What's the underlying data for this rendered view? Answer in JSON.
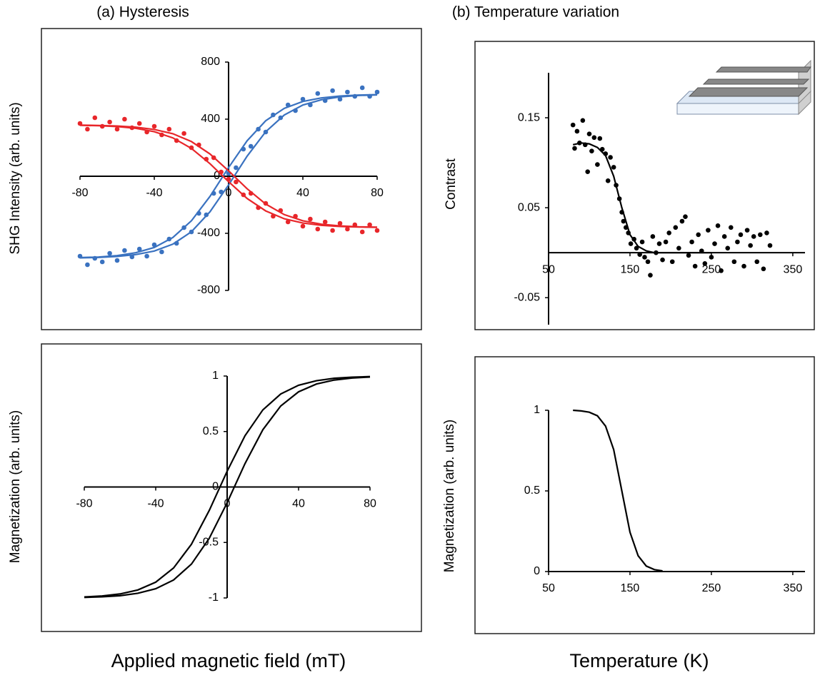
{
  "chart_data": [
    {
      "type": "scatter",
      "title": "(a) Hysteresis",
      "ylabel": "SHG Intensity (arb. units)",
      "xlim": [
        -80,
        80
      ],
      "ylim": [
        -800,
        800
      ],
      "xticks": [
        -80,
        -40,
        0,
        40,
        80
      ],
      "yticks": [
        -800,
        -400,
        0,
        400,
        800
      ],
      "series": [
        {
          "style": "markers",
          "color": "#3a72c0",
          "x": [
            -80,
            -76,
            -72,
            -68,
            -64,
            -60,
            -56,
            -52,
            -48,
            -44,
            -40,
            -36,
            -32,
            -28,
            -24,
            -20,
            -16,
            -12,
            -8,
            -4,
            0,
            4,
            8,
            12,
            16,
            20,
            24,
            28,
            32,
            36,
            40,
            44,
            48,
            52,
            56,
            60,
            64,
            68,
            72,
            76,
            80
          ],
          "values": [
            -560,
            -620,
            -575,
            -600,
            -540,
            -590,
            -520,
            -565,
            -510,
            -560,
            -480,
            -530,
            -440,
            -470,
            -360,
            -390,
            -260,
            -270,
            -120,
            -110,
            20,
            60,
            190,
            210,
            330,
            310,
            430,
            410,
            500,
            460,
            540,
            500,
            580,
            530,
            600,
            540,
            590,
            560,
            620,
            560,
            590
          ]
        },
        {
          "style": "markers",
          "color": "#e8262a",
          "x": [
            -80,
            -76,
            -72,
            -68,
            -64,
            -60,
            -56,
            -52,
            -48,
            -44,
            -40,
            -36,
            -32,
            -28,
            -24,
            -20,
            -16,
            -12,
            -8,
            -4,
            0,
            4,
            8,
            12,
            16,
            20,
            24,
            28,
            32,
            36,
            40,
            44,
            48,
            52,
            56,
            60,
            64,
            68,
            72,
            76,
            80
          ],
          "values": [
            370,
            330,
            410,
            350,
            380,
            330,
            400,
            340,
            370,
            310,
            350,
            290,
            330,
            250,
            300,
            200,
            220,
            120,
            130,
            30,
            -20,
            -40,
            -130,
            -120,
            -220,
            -190,
            -280,
            -240,
            -320,
            -280,
            -350,
            -300,
            -370,
            -320,
            -380,
            -330,
            -370,
            -340,
            -390,
            -340,
            -380
          ]
        },
        {
          "style": "line",
          "color": "#3a72c0",
          "x": [
            -80,
            -70,
            -60,
            -50,
            -40,
            -30,
            -20,
            -10,
            0,
            10,
            20,
            30,
            40,
            50,
            60,
            70,
            80
          ],
          "values": [
            -572,
            -569,
            -562,
            -549,
            -524,
            -476,
            -389,
            -249,
            -61,
            141,
            312,
            429,
            499,
            536,
            556,
            566,
            570
          ]
        },
        {
          "style": "line",
          "color": "#3a72c0",
          "x": [
            -80,
            -70,
            -60,
            -50,
            -40,
            -30,
            -20,
            -10,
            0,
            10,
            20,
            30,
            40,
            50,
            60,
            70,
            80
          ],
          "values": [
            -570,
            -566,
            -556,
            -536,
            -499,
            -429,
            -312,
            -141,
            61,
            249,
            389,
            476,
            524,
            549,
            562,
            569,
            572
          ]
        },
        {
          "style": "line",
          "color": "#e8262a",
          "x": [
            -80,
            -70,
            -60,
            -50,
            -40,
            -30,
            -20,
            -10,
            0,
            10,
            20,
            30,
            40,
            50,
            60,
            70,
            80
          ],
          "values": [
            358,
            356,
            352,
            344,
            328,
            298,
            243,
            156,
            38,
            -88,
            -195,
            -269,
            -312,
            -336,
            -348,
            -354,
            -357
          ]
        },
        {
          "style": "line",
          "color": "#e8262a",
          "x": [
            -80,
            -70,
            -60,
            -50,
            -40,
            -30,
            -20,
            -10,
            0,
            10,
            20,
            30,
            40,
            50,
            60,
            70,
            80
          ],
          "values": [
            357,
            354,
            348,
            336,
            312,
            269,
            195,
            88,
            -38,
            -156,
            -243,
            -298,
            -328,
            -344,
            -352,
            -356,
            -358
          ]
        }
      ]
    },
    {
      "type": "scatter",
      "title": "(b) Temperature variation",
      "ylabel": "Contrast",
      "xlim": [
        50,
        365
      ],
      "ylim": [
        -0.08,
        0.2
      ],
      "xticks": [
        50,
        150,
        250,
        350
      ],
      "yticks": [
        -0.05,
        0.05,
        0.15
      ],
      "series": [
        {
          "style": "markers",
          "color": "#000000",
          "x": [
            80,
            82,
            85,
            88,
            92,
            95,
            98,
            100,
            103,
            106,
            110,
            113,
            116,
            120,
            123,
            126,
            130,
            133,
            137,
            140,
            142,
            145,
            148,
            151,
            155,
            158,
            162,
            165,
            168,
            172,
            175,
            178,
            182,
            186,
            190,
            194,
            198,
            202,
            206,
            210,
            214,
            218,
            222,
            226,
            230,
            234,
            238,
            242,
            246,
            250,
            254,
            258,
            262,
            266,
            270,
            274,
            278,
            282,
            286,
            290,
            294,
            298,
            302,
            306,
            310,
            314,
            318,
            322
          ],
          "values": [
            0.142,
            0.116,
            0.135,
            0.122,
            0.147,
            0.12,
            0.09,
            0.132,
            0.113,
            0.128,
            0.098,
            0.127,
            0.115,
            0.11,
            0.08,
            0.106,
            0.095,
            0.075,
            0.06,
            0.045,
            0.035,
            0.028,
            0.022,
            0.01,
            0.015,
            0.005,
            -0.002,
            0.012,
            -0.005,
            -0.01,
            -0.025,
            0.018,
            0.0,
            0.01,
            -0.008,
            0.012,
            0.022,
            -0.01,
            0.028,
            0.005,
            0.035,
            0.04,
            -0.003,
            0.012,
            -0.015,
            0.02,
            0.002,
            -0.012,
            0.025,
            -0.005,
            0.01,
            0.03,
            -0.02,
            0.018,
            0.005,
            0.028,
            -0.01,
            0.012,
            0.02,
            -0.015,
            0.025,
            0.008,
            0.018,
            -0.01,
            0.02,
            -0.018,
            0.022,
            0.008
          ]
        },
        {
          "style": "line",
          "color": "#000000",
          "x": [
            80,
            90,
            100,
            110,
            120,
            130,
            140,
            150,
            160,
            170,
            180,
            190,
            200,
            210,
            220,
            230,
            240,
            250
          ],
          "values": [
            0.12,
            0.122,
            0.121,
            0.117,
            0.108,
            0.085,
            0.05,
            0.02,
            0.007,
            0.002,
            0,
            0,
            0,
            0,
            0,
            0,
            0,
            0
          ]
        }
      ]
    },
    {
      "type": "line",
      "ylabel": "Magnetization (arb. units)",
      "xlabel": "Applied magnetic field (mT)",
      "xlim": [
        -80,
        80
      ],
      "ylim": [
        -1,
        1
      ],
      "xticks": [
        -80,
        -40,
        0,
        40,
        80
      ],
      "yticks": [
        -1,
        -0.5,
        0,
        0.5,
        1
      ],
      "series": [
        {
          "style": "line",
          "color": "#000000",
          "x": [
            -80,
            -70,
            -60,
            -50,
            -40,
            -30,
            -20,
            -10,
            0,
            10,
            20,
            30,
            40,
            50,
            60,
            70,
            80
          ],
          "values": [
            -0.991,
            -0.982,
            -0.964,
            -0.928,
            -0.858,
            -0.73,
            -0.516,
            -0.211,
            0.142,
            0.462,
            0.695,
            0.838,
            0.917,
            0.958,
            0.98,
            0.99,
            0.995
          ]
        },
        {
          "style": "line",
          "color": "#000000",
          "x": [
            -80,
            -70,
            -60,
            -50,
            -40,
            -30,
            -20,
            -10,
            0,
            10,
            20,
            30,
            40,
            50,
            60,
            70,
            80
          ],
          "values": [
            -0.995,
            -0.99,
            -0.98,
            -0.958,
            -0.917,
            -0.838,
            -0.695,
            -0.462,
            -0.142,
            0.211,
            0.516,
            0.73,
            0.858,
            0.928,
            0.964,
            0.982,
            0.991
          ]
        }
      ]
    },
    {
      "type": "line",
      "ylabel": "Magnetization (arb. units)",
      "xlabel": "Temperature (K)",
      "xlim": [
        50,
        365
      ],
      "ylim": [
        0,
        1
      ],
      "xticks": [
        50,
        150,
        250,
        350
      ],
      "yticks": [
        0,
        0.5,
        1
      ],
      "series": [
        {
          "style": "line",
          "color": "#000000",
          "x": [
            80,
            90,
            100,
            110,
            120,
            130,
            140,
            150,
            160,
            170,
            180,
            190
          ],
          "values": [
            1.0,
            0.996,
            0.988,
            0.966,
            0.902,
            0.756,
            0.5,
            0.244,
            0.098,
            0.034,
            0.012,
            0.004
          ]
        }
      ]
    }
  ]
}
